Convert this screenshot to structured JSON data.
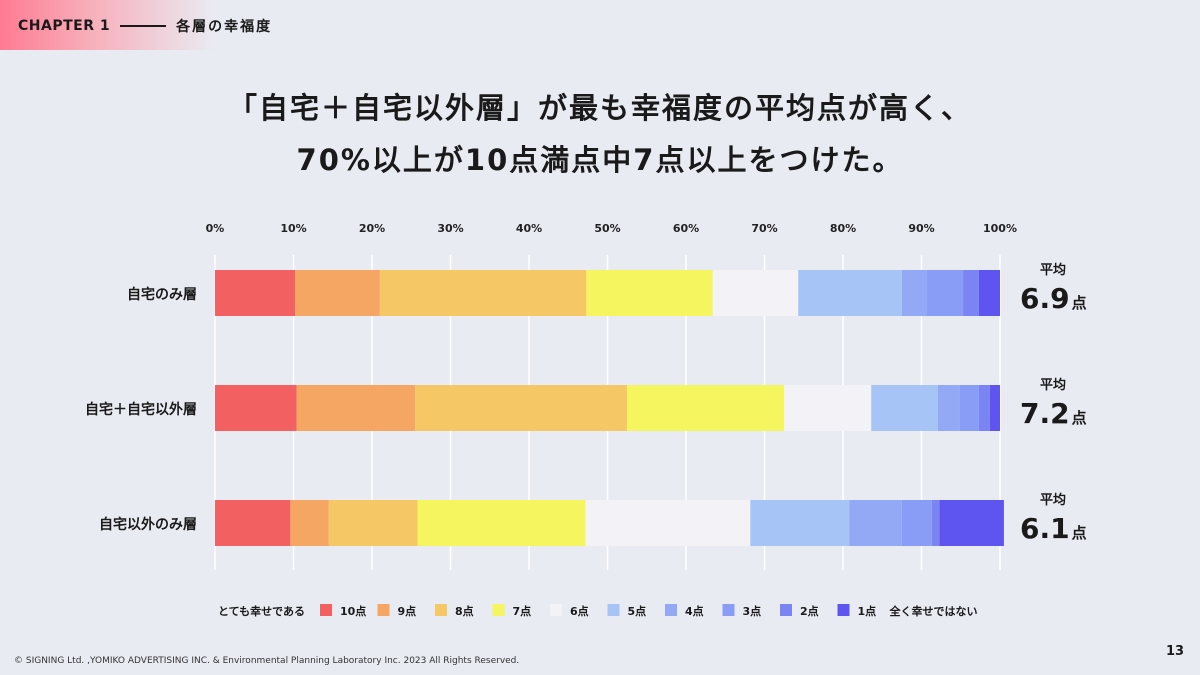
{
  "header": {
    "chapter": "CHAPTER 1",
    "section": "各層の幸福度"
  },
  "headline": {
    "line1": "「自宅＋自宅以外層」が最も幸福度の平均点が高く、",
    "line2": "70%以上が10点満点中7点以上をつけた。"
  },
  "chart_data": {
    "type": "bar",
    "orientation": "horizontal",
    "stacked": true,
    "title": "",
    "xlabel": "",
    "ylabel": "",
    "xlim": [
      0,
      100
    ],
    "ticks": [
      "0%",
      "10%",
      "20%",
      "30%",
      "40%",
      "50%",
      "60%",
      "70%",
      "80%",
      "90%",
      "100%"
    ],
    "tick_values": [
      0,
      10,
      20,
      30,
      40,
      50,
      60,
      70,
      80,
      90,
      100
    ],
    "grid": true,
    "legend_position": "bottom",
    "categories": [
      "自宅のみ層",
      "自宅＋自宅以外層",
      "自宅以外のみ層"
    ],
    "series": [
      {
        "name": "10点",
        "color": "#f26062",
        "values": [
          10.2,
          10.4,
          9.6
        ]
      },
      {
        "name": "9点",
        "color": "#f6a663",
        "values": [
          10.8,
          15.1,
          4.9
        ]
      },
      {
        "name": "8点",
        "color": "#f5c765",
        "values": [
          26.3,
          27.0,
          11.3
        ]
      },
      {
        "name": "7点",
        "color": "#f4f55f",
        "values": [
          16.1,
          20.0,
          21.4
        ]
      },
      {
        "name": "6点",
        "color": "#f3f3f7",
        "values": [
          10.9,
          11.1,
          21.0
        ]
      },
      {
        "name": "5点",
        "color": "#a7c4f7",
        "values": [
          13.2,
          8.5,
          12.6
        ]
      },
      {
        "name": "4点",
        "color": "#94a9f5",
        "values": [
          3.2,
          2.8,
          6.7
        ]
      },
      {
        "name": "3点",
        "color": "#8a9df6",
        "values": [
          4.6,
          2.4,
          3.8
        ]
      },
      {
        "name": "2点",
        "color": "#7b84f3",
        "values": [
          2.0,
          1.4,
          1.0
        ]
      },
      {
        "name": "1点",
        "color": "#5e55f0",
        "values": [
          2.7,
          1.3,
          8.2
        ]
      }
    ],
    "averages": [
      {
        "label": "平均",
        "value": "6.9",
        "unit": "点"
      },
      {
        "label": "平均",
        "value": "7.2",
        "unit": "点"
      },
      {
        "label": "平均",
        "value": "6.1",
        "unit": "点"
      }
    ],
    "legend_left_label": "とても幸せである",
    "legend_right_label": "全く幸せではない"
  },
  "footer": {
    "copyright": "© SIGNING Ltd. ,YOMIKO ADVERTISING INC. & Environmental Planning Laboratory Inc. 2023 All Rights Reserved.",
    "page_number": "13"
  }
}
